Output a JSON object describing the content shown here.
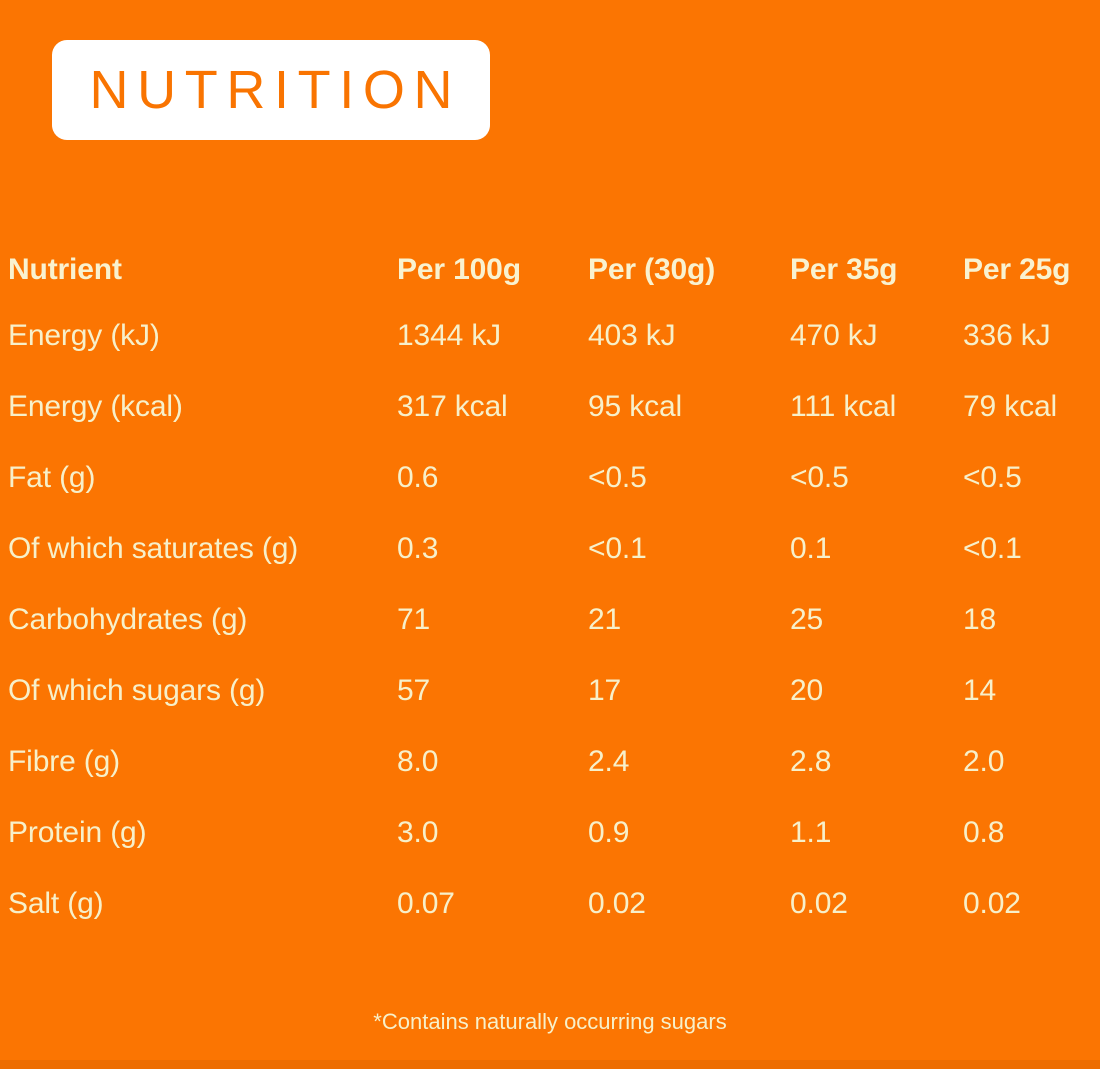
{
  "theme": {
    "background": "#FB7502",
    "bottom_strip": "#ED6D01",
    "panel_bg": "#FFFFFF",
    "title_color": "#F97401",
    "header_text_color": "#F9F2D0",
    "body_text_color": "#F7F0CA"
  },
  "title": "NUTRITION",
  "table": {
    "columns": [
      "Nutrient",
      "Per 100g",
      "Per (30g)",
      "Per 35g",
      "Per 25g"
    ],
    "rows": [
      {
        "label": "Energy (kJ)",
        "values": [
          "1344 kJ",
          "403 kJ",
          "470 kJ",
          "336 kJ"
        ]
      },
      {
        "label": "Energy (kcal)",
        "values": [
          "317 kcal",
          "95 kcal",
          "111 kcal",
          "79 kcal"
        ]
      },
      {
        "label": "Fat (g)",
        "values": [
          "0.6",
          "<0.5",
          "<0.5",
          "<0.5"
        ]
      },
      {
        "label": "Of which saturates (g)",
        "values": [
          "0.3",
          "<0.1",
          "0.1",
          "<0.1"
        ]
      },
      {
        "label": "Carbohydrates (g)",
        "values": [
          "71",
          "21",
          "25",
          "18"
        ]
      },
      {
        "label": "Of which sugars (g)",
        "values": [
          "57",
          "17",
          "20",
          "14"
        ]
      },
      {
        "label": "Fibre (g)",
        "values": [
          "8.0",
          "2.4",
          "2.8",
          "2.0"
        ]
      },
      {
        "label": "Protein (g)",
        "values": [
          "3.0",
          "0.9",
          "1.1",
          "0.8"
        ]
      },
      {
        "label": "Salt (g)",
        "values": [
          "0.07",
          "0.02",
          "0.02",
          "0.02"
        ]
      }
    ]
  },
  "footnote": "*Contains naturally occurring sugars"
}
